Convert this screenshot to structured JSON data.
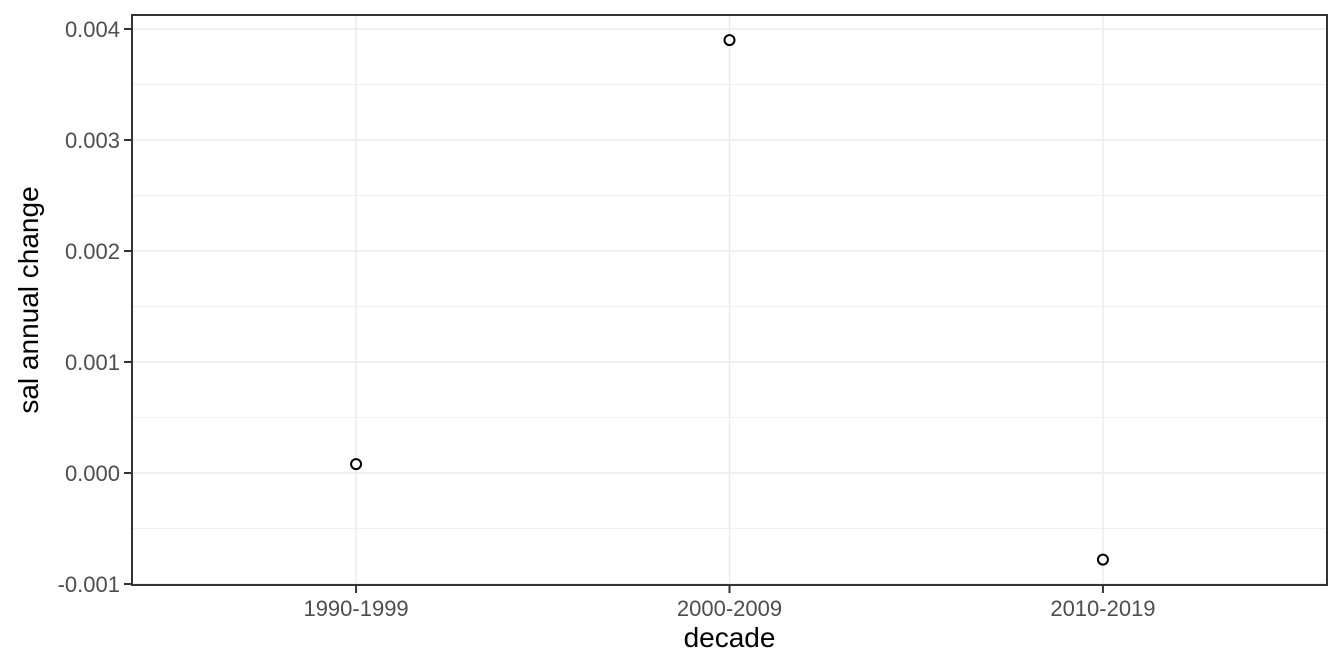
{
  "chart_data": {
    "type": "scatter",
    "title": "",
    "xlabel": "decade",
    "ylabel": "sal annual change",
    "categories": [
      "1990-1999",
      "2000-2009",
      "2010-2019"
    ],
    "values": [
      8e-05,
      0.0039,
      -0.00078
    ],
    "ylim": [
      -0.001,
      0.004
    ],
    "y_ticks": [
      -0.001,
      0,
      0.001,
      0.002,
      0.003,
      0.004
    ],
    "y_tick_labels": [
      "-0.001",
      "0.000",
      "0.001",
      "0.002",
      "0.003",
      "0.004"
    ],
    "y_minor_ticks": [
      -0.0005,
      0.0005,
      0.0015,
      0.0025,
      0.0035
    ],
    "grid": "on",
    "legend": "none",
    "point_style": "open-circle",
    "colors": {
      "background": "#ffffff",
      "panel_background": "#ffffff",
      "panel_border": "#333333",
      "grid_major": "#ebebeb",
      "grid_minor": "#f0f0f0",
      "tick_mark": "#333333",
      "tick_label": "#4d4d4d",
      "axis_title": "#000000",
      "point_stroke": "#000000",
      "point_fill": "#ffffff"
    }
  }
}
